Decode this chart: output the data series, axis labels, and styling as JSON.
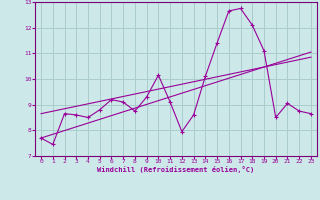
{
  "title": "",
  "xlabel": "Windchill (Refroidissement éolien,°C)",
  "ylabel": "",
  "bg_color": "#cce8e8",
  "grid_color": "#aacccc",
  "line_color": "#990099",
  "spine_color": "#7a007a",
  "xlim": [
    -0.5,
    23.5
  ],
  "ylim": [
    7,
    13
  ],
  "xticks": [
    0,
    1,
    2,
    3,
    4,
    5,
    6,
    7,
    8,
    9,
    10,
    11,
    12,
    13,
    14,
    15,
    16,
    17,
    18,
    19,
    20,
    21,
    22,
    23
  ],
  "yticks": [
    7,
    8,
    9,
    10,
    11,
    12,
    13
  ],
  "line1_x": [
    0,
    1,
    2,
    3,
    4,
    5,
    6,
    7,
    8,
    9,
    10,
    11,
    12,
    13,
    14,
    15,
    16,
    17,
    18,
    19,
    20,
    21,
    22,
    23
  ],
  "line1_y": [
    7.7,
    7.45,
    8.65,
    8.6,
    8.5,
    8.8,
    9.2,
    9.1,
    8.75,
    9.3,
    10.15,
    9.1,
    7.95,
    8.6,
    10.1,
    11.4,
    12.65,
    12.75,
    12.1,
    11.1,
    8.5,
    9.05,
    8.75,
    8.65
  ],
  "line2_x": [
    0,
    23
  ],
  "line2_y": [
    7.7,
    11.05
  ],
  "line3_x": [
    0,
    23
  ],
  "line3_y": [
    8.65,
    10.85
  ]
}
